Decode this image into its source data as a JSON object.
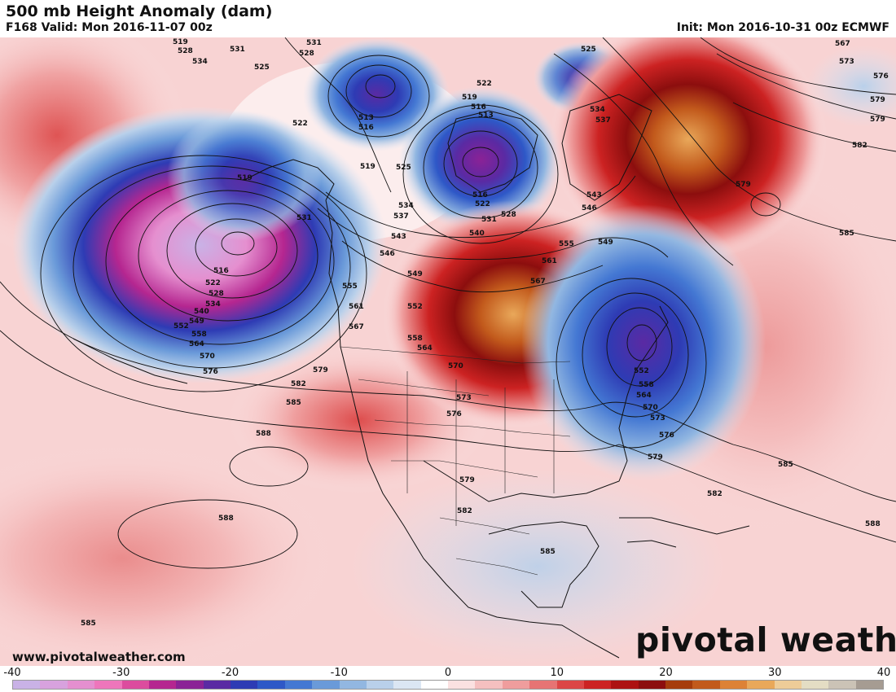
{
  "header": {
    "title": "500 mb Height Anomaly (dam)",
    "valid": "F168 Valid: Mon 2016-11-07 00z",
    "init": "Init: Mon 2016-10-31 00z ECMWF"
  },
  "footer": {
    "website": "www.pivotalweather.com",
    "brand": "pivotal weather"
  },
  "colorbar": {
    "ticks": [
      "-40",
      "-30",
      "-20",
      "-10",
      "0",
      "10",
      "20",
      "30",
      "40"
    ],
    "range": [
      -40,
      40
    ],
    "colors": [
      "#c9b2e6",
      "#d8a2de",
      "#e58fcf",
      "#ee76bb",
      "#dc4c9e",
      "#b52690",
      "#8b2296",
      "#5a2aa3",
      "#2e3bb4",
      "#2e58c7",
      "#4478d3",
      "#6a9ad9",
      "#92b7e1",
      "#b9d0ea",
      "#dbe6f3",
      "#ffffff",
      "#fbe1e1",
      "#f5c0c0",
      "#ef9d9d",
      "#e67474",
      "#dc4646",
      "#cc2222",
      "#ad1212",
      "#8c0e0e",
      "#a63c0c",
      "#c25a1c",
      "#dd8236",
      "#e9a85a",
      "#eecc98",
      "#e4ddc4",
      "#cbc3b6",
      "#a69c92"
    ]
  },
  "map": {
    "label_values": [
      "513",
      "516",
      "519",
      "522",
      "525",
      "528",
      "531",
      "534",
      "537",
      "540",
      "543",
      "546",
      "549",
      "552",
      "555",
      "558",
      "561",
      "564",
      "567",
      "570",
      "573",
      "576",
      "579",
      "582",
      "585",
      "588"
    ],
    "anomaly_centers": [
      {
        "name": "aleutian-low",
        "sign": "negative",
        "peak": -30
      },
      {
        "name": "bering-low",
        "sign": "negative",
        "peak": -18
      },
      {
        "name": "arctic-low",
        "sign": "negative",
        "peak": -14
      },
      {
        "name": "hudson-bay-low",
        "sign": "negative",
        "peak": -25
      },
      {
        "name": "great-lakes-ridge",
        "sign": "positive",
        "peak": 28
      },
      {
        "name": "greenland-ridge",
        "sign": "positive",
        "peak": 30
      },
      {
        "name": "atlantic-coast-low",
        "sign": "negative",
        "peak": -28
      }
    ]
  }
}
